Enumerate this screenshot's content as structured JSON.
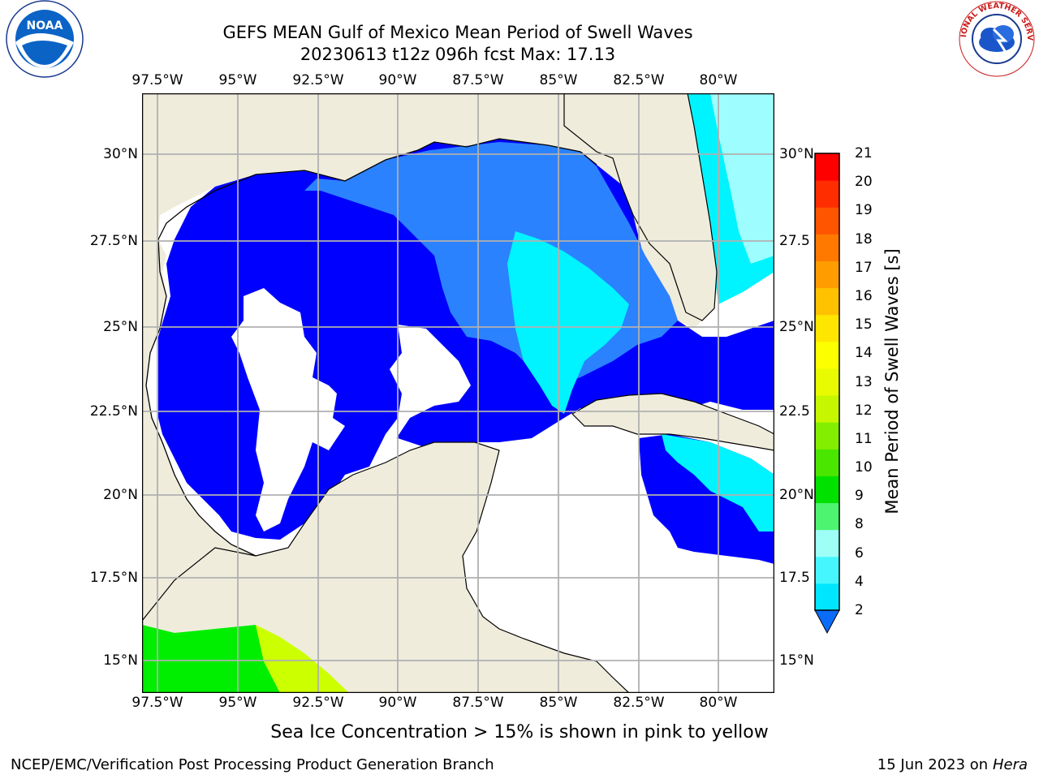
{
  "header": {
    "title_line1": "GEFS MEAN Gulf of Mexico Mean Period of Swell Waves",
    "title_line2": "20230613 t12z 096h fcst   Max: 17.13"
  },
  "logos": {
    "left": "NOAA",
    "right": "NATIONAL WEATHER SERVICE"
  },
  "map": {
    "lon_labels": [
      "97.5°W",
      "95°W",
      "92.5°W",
      "90°W",
      "87.5°W",
      "85°W",
      "82.5°W",
      "80°W"
    ],
    "lat_labels_left": [
      "30°N",
      "27.5°N",
      "25°N",
      "22.5°N",
      "20°N",
      "17.5°N",
      "15°N"
    ],
    "lat_labels_right": [
      "30°N",
      "27.5",
      "25°N",
      "22.5",
      "20°N",
      "17.5",
      "15°N"
    ],
    "colors": {
      "land": "#efecdc",
      "water_blue": "#0000ff",
      "mid_blue": "#2b82ff",
      "cyan": "#00f4ff",
      "light_cyan": "#9efeff",
      "green": "#00ee00",
      "yellow_green": "#ccff00"
    }
  },
  "colorbar": {
    "label": "Mean Period of Swell Waves [s]",
    "ticks": [
      "21",
      "20",
      "19",
      "18",
      "17",
      "16",
      "15",
      "14",
      "13",
      "12",
      "11",
      "10",
      "9",
      "8",
      "6",
      "4",
      "2"
    ],
    "colors": [
      "#0b6cf8",
      "#00e6ff",
      "#45f6ff",
      "#9dfff6",
      "#4cf46f",
      "#00e100",
      "#4ae600",
      "#84ee00",
      "#c6f700",
      "#e8fb00",
      "#fcff00",
      "#ffe600",
      "#ffc100",
      "#ff9d00",
      "#ff7800",
      "#ff5400",
      "#ff2d00",
      "#ff0000"
    ]
  },
  "note": "Sea Ice Concentration > 15% is shown in pink to yellow",
  "footer": {
    "left": "NCEP/EMC/Verification Post Processing Product Generation Branch",
    "date": "15 Jun 2023 on",
    "host": "Hera"
  }
}
